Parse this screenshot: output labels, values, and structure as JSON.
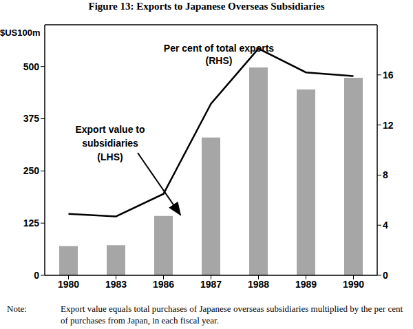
{
  "chart_data": {
    "type": "bar",
    "title": "Figure 13: Exports to Japanese Overseas Subsidiaries",
    "y_label": "$US100m",
    "categories": [
      "1980",
      "1983",
      "1986",
      "1987",
      "1988",
      "1989",
      "1990"
    ],
    "series": [
      {
        "type": "bar",
        "color": "#a6a6a6",
        "axis": "y",
        "values": [
          70,
          72,
          142,
          330,
          498,
          445,
          473
        ]
      },
      {
        "type": "line",
        "color": "#000000",
        "axis": "y2",
        "values": [
          4.9,
          4.7,
          6.5,
          13.7,
          18.1,
          16.2,
          15.9
        ]
      }
    ],
    "ylim": [
      0,
      600
    ],
    "yticks": [
      0,
      125,
      250,
      375,
      500
    ],
    "y2lim": [
      0,
      20
    ],
    "y2ticks": [
      0,
      4,
      8,
      12,
      16
    ],
    "grid": false,
    "annotations": [
      {
        "lines": [
          "Per cent of total exports",
          "(RHS)"
        ]
      },
      {
        "lines": [
          "Export value to",
          "subsidiaries",
          "(LHS)"
        ]
      }
    ],
    "note_label": "Note:",
    "note": "Export value equals total purchases of Japanese overseas subsidiaries multiplied by the per cent of purchases from Japan, in each fiscal year."
  }
}
